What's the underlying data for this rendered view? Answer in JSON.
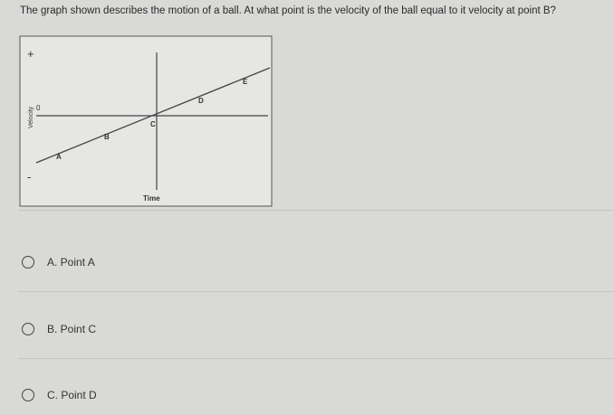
{
  "question": "The graph shown describes the motion of a ball. At what point is the velocity of the ball equal to it velocity at point B?",
  "graph": {
    "plus": "+",
    "minus": "-",
    "y_label": "Velocity",
    "zero": "0",
    "x_label": "Time",
    "points": [
      "A",
      "B",
      "C",
      "D",
      "E"
    ]
  },
  "options": [
    "A. Point A",
    "B. Point C",
    "C. Point D"
  ]
}
